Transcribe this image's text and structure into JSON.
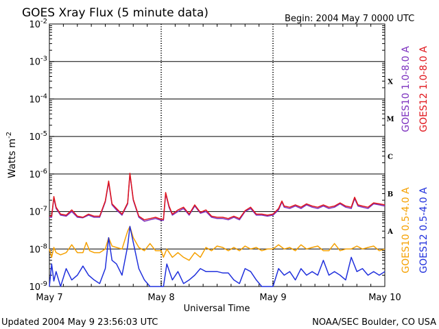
{
  "chart_data": {
    "type": "line",
    "title": "GOES Xray Flux (5 minute data)",
    "begin_label": "Begin:  2004 May 7 0000 UTC",
    "ylabel_text": "Watts m",
    "ylabel_sup": "-2",
    "xlabel": "Universal Time",
    "y_scale": "log",
    "ylim": [
      1e-09,
      0.01
    ],
    "xlim_days": [
      0,
      3
    ],
    "y_ticks": [
      {
        "value": 0.01,
        "base": "10",
        "exp": "-2"
      },
      {
        "value": 0.001,
        "base": "10",
        "exp": "-3"
      },
      {
        "value": 0.0001,
        "base": "10",
        "exp": "-4"
      },
      {
        "value": 1e-05,
        "base": "10",
        "exp": "-5"
      },
      {
        "value": 1e-06,
        "base": "10",
        "exp": "-6"
      },
      {
        "value": 1e-07,
        "base": "10",
        "exp": "-7"
      },
      {
        "value": 1e-08,
        "base": "10",
        "exp": "-8"
      },
      {
        "value": 1e-09,
        "base": "10",
        "exp": "-9"
      }
    ],
    "x_ticks": [
      {
        "day": 0,
        "label": "May 7"
      },
      {
        "day": 1,
        "label": "May 8"
      },
      {
        "day": 2,
        "label": "May 9"
      },
      {
        "day": 3,
        "label": "May 10"
      }
    ],
    "flare_classes": [
      {
        "label": "X",
        "value": 0.0003
      },
      {
        "label": "M",
        "value": 3e-05
      },
      {
        "label": "C",
        "value": 3e-06
      },
      {
        "label": "B",
        "value": 3e-07
      },
      {
        "label": "A",
        "value": 3e-08
      }
    ],
    "grid_lines": [
      0.001,
      0.0001,
      1e-05,
      1e-06,
      1e-07,
      1e-08
    ],
    "series": [
      {
        "name": "GOES10 1.0-8.0 A",
        "color": "#7b2fbe",
        "points": [
          [
            0,
            7e-08
          ],
          [
            0.02,
            7e-08
          ],
          [
            0.04,
            2.3e-07
          ],
          [
            0.06,
            1.2e-07
          ],
          [
            0.1,
            8e-08
          ],
          [
            0.15,
            7.5e-08
          ],
          [
            0.2,
            1e-07
          ],
          [
            0.25,
            7e-08
          ],
          [
            0.3,
            6.8e-08
          ],
          [
            0.35,
            8e-08
          ],
          [
            0.4,
            7e-08
          ],
          [
            0.45,
            7e-08
          ],
          [
            0.5,
            1.8e-07
          ],
          [
            0.53,
            6e-07
          ],
          [
            0.56,
            1.5e-07
          ],
          [
            0.6,
            1.1e-07
          ],
          [
            0.65,
            8e-08
          ],
          [
            0.7,
            1.6e-07
          ],
          [
            0.72,
            1e-06
          ],
          [
            0.75,
            2e-07
          ],
          [
            0.8,
            7e-08
          ],
          [
            0.85,
            5.5e-08
          ],
          [
            0.9,
            6e-08
          ],
          [
            0.95,
            6.5e-08
          ],
          [
            1.0,
            5.8e-08
          ],
          [
            1.02,
            5.8e-08
          ],
          [
            1.04,
            3e-07
          ],
          [
            1.07,
            1.3e-07
          ],
          [
            1.1,
            8e-08
          ],
          [
            1.15,
            1e-07
          ],
          [
            1.2,
            1.2e-07
          ],
          [
            1.25,
            8e-08
          ],
          [
            1.3,
            1.4e-07
          ],
          [
            1.35,
            9e-08
          ],
          [
            1.4,
            1e-07
          ],
          [
            1.45,
            7e-08
          ],
          [
            1.5,
            6.5e-08
          ],
          [
            1.55,
            6.5e-08
          ],
          [
            1.6,
            6e-08
          ],
          [
            1.65,
            7e-08
          ],
          [
            1.7,
            6e-08
          ],
          [
            1.75,
            1e-07
          ],
          [
            1.8,
            1.2e-07
          ],
          [
            1.85,
            8e-08
          ],
          [
            1.9,
            8e-08
          ],
          [
            1.95,
            7.5e-08
          ],
          [
            2.0,
            8e-08
          ],
          [
            2.05,
            1.1e-07
          ],
          [
            2.08,
            1.8e-07
          ],
          [
            2.1,
            1.3e-07
          ],
          [
            2.15,
            1.2e-07
          ],
          [
            2.2,
            1.4e-07
          ],
          [
            2.25,
            1.2e-07
          ],
          [
            2.3,
            1.5e-07
          ],
          [
            2.35,
            1.3e-07
          ],
          [
            2.4,
            1.2e-07
          ],
          [
            2.45,
            1.4e-07
          ],
          [
            2.5,
            1.2e-07
          ],
          [
            2.55,
            1.3e-07
          ],
          [
            2.6,
            1.6e-07
          ],
          [
            2.65,
            1.3e-07
          ],
          [
            2.7,
            1.2e-07
          ],
          [
            2.73,
            2.2e-07
          ],
          [
            2.76,
            1.4e-07
          ],
          [
            2.8,
            1.3e-07
          ],
          [
            2.85,
            1.2e-07
          ],
          [
            2.9,
            1.6e-07
          ],
          [
            2.95,
            1.5e-07
          ],
          [
            3.0,
            1.4e-07
          ]
        ]
      },
      {
        "name": "GOES12 1.0-8.0 A",
        "color": "#e0151b",
        "points": [
          [
            0,
            7.5e-08
          ],
          [
            0.02,
            7.5e-08
          ],
          [
            0.04,
            2.5e-07
          ],
          [
            0.06,
            1.3e-07
          ],
          [
            0.1,
            8.5e-08
          ],
          [
            0.15,
            8e-08
          ],
          [
            0.2,
            1.1e-07
          ],
          [
            0.25,
            7.5e-08
          ],
          [
            0.3,
            7e-08
          ],
          [
            0.35,
            8.5e-08
          ],
          [
            0.4,
            7.5e-08
          ],
          [
            0.45,
            7.5e-08
          ],
          [
            0.5,
            1.9e-07
          ],
          [
            0.53,
            6.5e-07
          ],
          [
            0.56,
            1.6e-07
          ],
          [
            0.6,
            1.2e-07
          ],
          [
            0.65,
            8.5e-08
          ],
          [
            0.7,
            1.7e-07
          ],
          [
            0.72,
            1.05e-06
          ],
          [
            0.75,
            2.1e-07
          ],
          [
            0.8,
            7.5e-08
          ],
          [
            0.85,
            6e-08
          ],
          [
            0.9,
            6.5e-08
          ],
          [
            0.95,
            7e-08
          ],
          [
            1.0,
            6.2e-08
          ],
          [
            1.02,
            6.2e-08
          ],
          [
            1.04,
            3.2e-07
          ],
          [
            1.07,
            1.4e-07
          ],
          [
            1.1,
            8.5e-08
          ],
          [
            1.15,
            1.1e-07
          ],
          [
            1.2,
            1.3e-07
          ],
          [
            1.25,
            8.5e-08
          ],
          [
            1.3,
            1.5e-07
          ],
          [
            1.35,
            9.5e-08
          ],
          [
            1.4,
            1.1e-07
          ],
          [
            1.45,
            7.5e-08
          ],
          [
            1.5,
            7e-08
          ],
          [
            1.55,
            7e-08
          ],
          [
            1.6,
            6.5e-08
          ],
          [
            1.65,
            7.5e-08
          ],
          [
            1.7,
            6.5e-08
          ],
          [
            1.75,
            1.05e-07
          ],
          [
            1.8,
            1.3e-07
          ],
          [
            1.85,
            8.5e-08
          ],
          [
            1.9,
            8.5e-08
          ],
          [
            1.95,
            8e-08
          ],
          [
            2.0,
            8.5e-08
          ],
          [
            2.05,
            1.2e-07
          ],
          [
            2.08,
            1.9e-07
          ],
          [
            2.1,
            1.4e-07
          ],
          [
            2.15,
            1.3e-07
          ],
          [
            2.2,
            1.5e-07
          ],
          [
            2.25,
            1.3e-07
          ],
          [
            2.3,
            1.6e-07
          ],
          [
            2.35,
            1.4e-07
          ],
          [
            2.4,
            1.3e-07
          ],
          [
            2.45,
            1.5e-07
          ],
          [
            2.5,
            1.3e-07
          ],
          [
            2.55,
            1.4e-07
          ],
          [
            2.6,
            1.7e-07
          ],
          [
            2.65,
            1.4e-07
          ],
          [
            2.7,
            1.3e-07
          ],
          [
            2.73,
            2.4e-07
          ],
          [
            2.76,
            1.5e-07
          ],
          [
            2.8,
            1.4e-07
          ],
          [
            2.85,
            1.3e-07
          ],
          [
            2.9,
            1.7e-07
          ],
          [
            2.95,
            1.6e-07
          ],
          [
            3.0,
            1.5e-07
          ]
        ]
      },
      {
        "name": "GOES10 0.5-4.0 A",
        "color": "#f5a000",
        "points": [
          [
            0,
            1e-08
          ],
          [
            0.02,
            6e-09
          ],
          [
            0.04,
            1.1e-08
          ],
          [
            0.06,
            8e-09
          ],
          [
            0.1,
            7e-09
          ],
          [
            0.15,
            8e-09
          ],
          [
            0.2,
            1.3e-08
          ],
          [
            0.25,
            8e-09
          ],
          [
            0.3,
            8e-09
          ],
          [
            0.33,
            1.5e-08
          ],
          [
            0.36,
            9e-09
          ],
          [
            0.4,
            8e-09
          ],
          [
            0.45,
            8e-09
          ],
          [
            0.5,
            1e-08
          ],
          [
            0.53,
            2e-08
          ],
          [
            0.56,
            1.2e-08
          ],
          [
            0.6,
            1.1e-08
          ],
          [
            0.65,
            1e-08
          ],
          [
            0.7,
            3e-08
          ],
          [
            0.72,
            4e-08
          ],
          [
            0.75,
            2e-08
          ],
          [
            0.8,
            1.1e-08
          ],
          [
            0.85,
            9e-09
          ],
          [
            0.9,
            1.4e-08
          ],
          [
            0.95,
            9e-09
          ],
          [
            1.0,
            9e-09
          ],
          [
            1.02,
            6e-09
          ],
          [
            1.05,
            1e-08
          ],
          [
            1.1,
            6e-09
          ],
          [
            1.15,
            8e-09
          ],
          [
            1.2,
            6e-09
          ],
          [
            1.25,
            5e-09
          ],
          [
            1.3,
            8e-09
          ],
          [
            1.35,
            6e-09
          ],
          [
            1.4,
            1.1e-08
          ],
          [
            1.45,
            9e-09
          ],
          [
            1.5,
            1.2e-08
          ],
          [
            1.55,
            1.1e-08
          ],
          [
            1.6,
            9e-09
          ],
          [
            1.65,
            1.1e-08
          ],
          [
            1.7,
            9e-09
          ],
          [
            1.75,
            1.2e-08
          ],
          [
            1.8,
            1e-08
          ],
          [
            1.85,
            1.1e-08
          ],
          [
            1.9,
            9e-09
          ],
          [
            1.95,
            1e-08
          ],
          [
            2.0,
            1e-08
          ],
          [
            2.05,
            1.3e-08
          ],
          [
            2.1,
            1e-08
          ],
          [
            2.15,
            1.1e-08
          ],
          [
            2.2,
            9e-09
          ],
          [
            2.25,
            1.3e-08
          ],
          [
            2.3,
            1e-08
          ],
          [
            2.35,
            1.1e-08
          ],
          [
            2.4,
            1.2e-08
          ],
          [
            2.45,
            9e-09
          ],
          [
            2.5,
            9e-09
          ],
          [
            2.55,
            1.4e-08
          ],
          [
            2.6,
            9e-09
          ],
          [
            2.65,
            1e-08
          ],
          [
            2.7,
            1e-08
          ],
          [
            2.75,
            1.2e-08
          ],
          [
            2.8,
            1e-08
          ],
          [
            2.85,
            1.1e-08
          ],
          [
            2.9,
            1.2e-08
          ],
          [
            2.95,
            9e-09
          ],
          [
            3.0,
            1e-08
          ]
        ]
      },
      {
        "name": "GOES12 0.5-4.0 A",
        "color": "#1f2fdc",
        "points": [
          [
            0,
            1e-09
          ],
          [
            0.02,
            4e-09
          ],
          [
            0.04,
            1.4e-09
          ],
          [
            0.06,
            2.5e-09
          ],
          [
            0.1,
            1e-09
          ],
          [
            0.15,
            3e-09
          ],
          [
            0.2,
            1.5e-09
          ],
          [
            0.25,
            2e-09
          ],
          [
            0.3,
            3.5e-09
          ],
          [
            0.35,
            2e-09
          ],
          [
            0.4,
            1.5e-09
          ],
          [
            0.45,
            1.2e-09
          ],
          [
            0.5,
            3e-09
          ],
          [
            0.53,
            2e-08
          ],
          [
            0.56,
            5e-09
          ],
          [
            0.6,
            4e-09
          ],
          [
            0.65,
            2e-09
          ],
          [
            0.7,
            1.2e-08
          ],
          [
            0.72,
            4e-08
          ],
          [
            0.75,
            1.5e-08
          ],
          [
            0.8,
            3e-09
          ],
          [
            0.85,
            1.5e-09
          ],
          [
            0.9,
            1e-09
          ],
          [
            0.95,
            1e-09
          ],
          [
            1.0,
            1e-09
          ],
          [
            1.02,
            1e-09
          ],
          [
            1.05,
            4e-09
          ],
          [
            1.1,
            1.5e-09
          ],
          [
            1.15,
            2.5e-09
          ],
          [
            1.2,
            1.2e-09
          ],
          [
            1.25,
            1.5e-09
          ],
          [
            1.3,
            2e-09
          ],
          [
            1.35,
            3e-09
          ],
          [
            1.4,
            2.5e-09
          ],
          [
            1.45,
            2.5e-09
          ],
          [
            1.5,
            2.5e-09
          ],
          [
            1.55,
            2.3e-09
          ],
          [
            1.6,
            2.3e-09
          ],
          [
            1.65,
            1.5e-09
          ],
          [
            1.7,
            1.2e-09
          ],
          [
            1.75,
            3e-09
          ],
          [
            1.8,
            2.5e-09
          ],
          [
            1.85,
            1.5e-09
          ],
          [
            1.9,
            1e-09
          ],
          [
            1.95,
            1e-09
          ],
          [
            2.0,
            1e-09
          ],
          [
            2.05,
            3e-09
          ],
          [
            2.1,
            2e-09
          ],
          [
            2.15,
            2.5e-09
          ],
          [
            2.2,
            1.5e-09
          ],
          [
            2.25,
            3e-09
          ],
          [
            2.3,
            2e-09
          ],
          [
            2.35,
            2.5e-09
          ],
          [
            2.4,
            2e-09
          ],
          [
            2.45,
            5e-09
          ],
          [
            2.5,
            2e-09
          ],
          [
            2.55,
            2.5e-09
          ],
          [
            2.6,
            2e-09
          ],
          [
            2.65,
            1.5e-09
          ],
          [
            2.7,
            6e-09
          ],
          [
            2.75,
            2.5e-09
          ],
          [
            2.8,
            3e-09
          ],
          [
            2.85,
            2e-09
          ],
          [
            2.9,
            2.5e-09
          ],
          [
            2.95,
            2e-09
          ],
          [
            3.0,
            2.5e-09
          ]
        ]
      }
    ],
    "legend_placement": "right",
    "grid": true
  },
  "footer": {
    "updated": "Updated 2004 May  9 23:56:03 UTC",
    "credit": "NOAA/SEC Boulder, CO USA"
  }
}
